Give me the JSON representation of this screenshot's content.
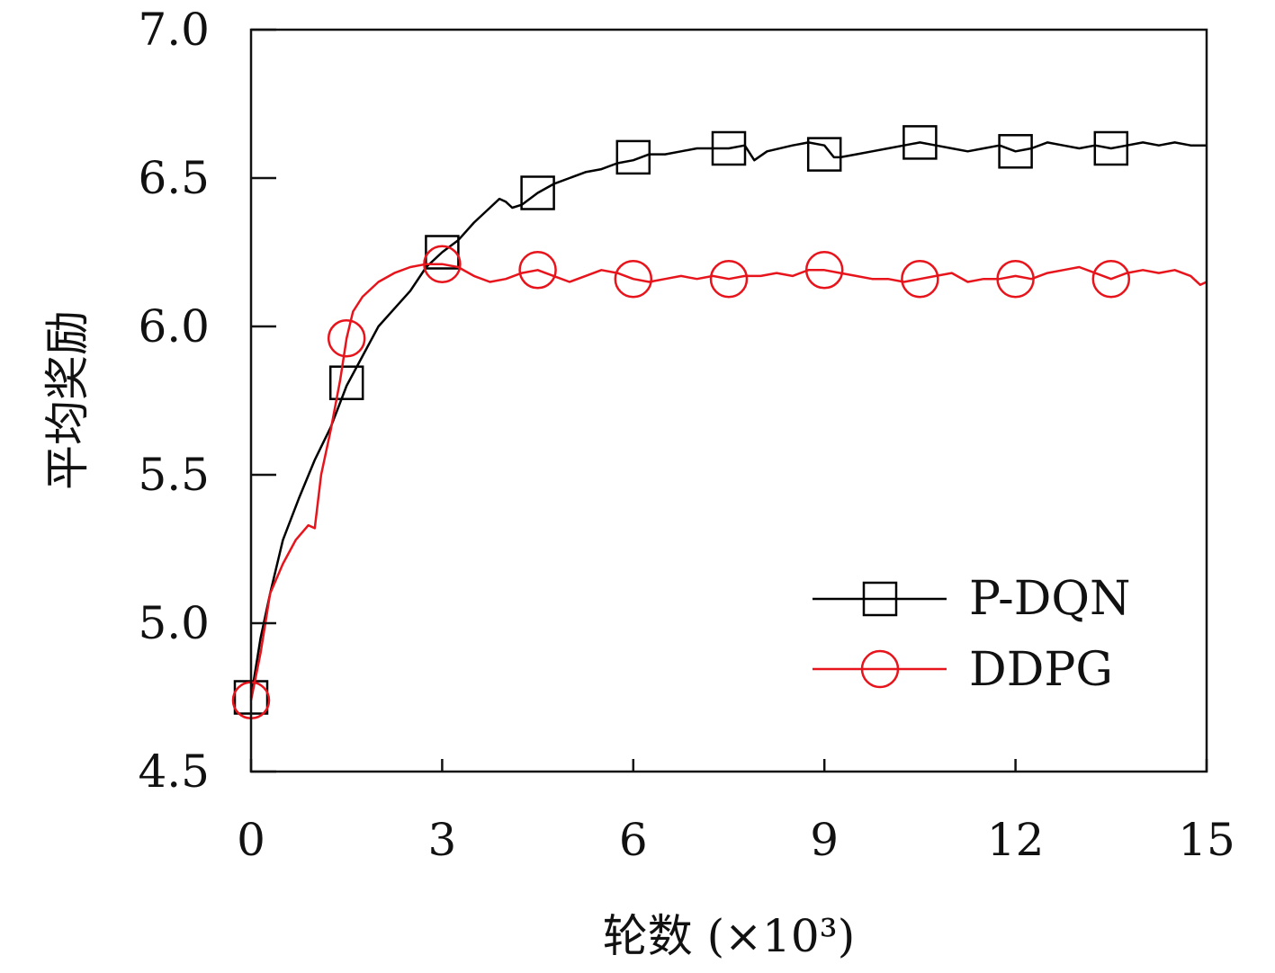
{
  "chart_data": {
    "type": "line",
    "xlabel": "轮数 (×10³)",
    "ylabel": "平均奖励",
    "xlim": [
      0,
      15
    ],
    "ylim": [
      4.5,
      7.0
    ],
    "x_ticks": [
      "0",
      "3",
      "6",
      "9",
      "12",
      "15"
    ],
    "y_ticks": [
      "4.5",
      "5.0",
      "5.5",
      "6.0",
      "6.5",
      "7.0"
    ],
    "grid": false,
    "legend_position": "lower-right",
    "series": [
      {
        "name": "P-DQN",
        "color": "#000000",
        "marker": "square",
        "markers": {
          "x": [
            0,
            1.5,
            3,
            4.5,
            6,
            7.5,
            9,
            10.5,
            12,
            13.5
          ],
          "y": [
            4.75,
            5.81,
            6.25,
            6.45,
            6.57,
            6.6,
            6.58,
            6.62,
            6.59,
            6.6
          ]
        },
        "x": [
          0,
          0.15,
          0.3,
          0.5,
          0.75,
          1.0,
          1.25,
          1.5,
          1.75,
          2.0,
          2.25,
          2.5,
          2.75,
          3.0,
          3.25,
          3.5,
          3.75,
          3.9,
          4.0,
          4.1,
          4.25,
          4.5,
          4.75,
          5.0,
          5.25,
          5.5,
          5.75,
          6.0,
          6.25,
          6.5,
          6.75,
          7.0,
          7.25,
          7.5,
          7.75,
          7.9,
          8.1,
          8.5,
          8.75,
          9.0,
          9.15,
          9.25,
          9.5,
          9.75,
          10.0,
          10.25,
          10.5,
          10.75,
          11.0,
          11.25,
          11.5,
          11.75,
          12.0,
          12.25,
          12.5,
          12.75,
          13.0,
          13.25,
          13.5,
          13.75,
          14.0,
          14.25,
          14.5,
          14.75,
          15.0
        ],
        "y": [
          4.75,
          4.95,
          5.1,
          5.28,
          5.42,
          5.55,
          5.66,
          5.8,
          5.9,
          6.0,
          6.06,
          6.12,
          6.2,
          6.25,
          6.29,
          6.35,
          6.4,
          6.43,
          6.42,
          6.4,
          6.41,
          6.45,
          6.48,
          6.5,
          6.52,
          6.53,
          6.55,
          6.56,
          6.58,
          6.58,
          6.59,
          6.6,
          6.6,
          6.6,
          6.61,
          6.56,
          6.59,
          6.61,
          6.62,
          6.61,
          6.57,
          6.57,
          6.58,
          6.59,
          6.6,
          6.61,
          6.62,
          6.61,
          6.6,
          6.59,
          6.6,
          6.61,
          6.59,
          6.6,
          6.62,
          6.61,
          6.6,
          6.61,
          6.6,
          6.61,
          6.62,
          6.61,
          6.62,
          6.61,
          6.61
        ]
      },
      {
        "name": "DDPG",
        "color": "#e8141c",
        "marker": "circle",
        "markers": {
          "x": [
            0,
            1.5,
            3,
            4.5,
            6,
            7.5,
            9,
            10.5,
            12,
            13.5
          ],
          "y": [
            4.74,
            5.96,
            6.21,
            6.19,
            6.16,
            6.16,
            6.19,
            6.16,
            6.16,
            6.16
          ]
        },
        "x": [
          0,
          0.15,
          0.3,
          0.5,
          0.7,
          0.9,
          1.0,
          1.1,
          1.25,
          1.4,
          1.5,
          1.6,
          1.75,
          2.0,
          2.25,
          2.5,
          2.75,
          3.0,
          3.25,
          3.5,
          3.75,
          4.0,
          4.25,
          4.5,
          4.75,
          5.0,
          5.25,
          5.5,
          5.75,
          6.0,
          6.25,
          6.5,
          6.75,
          7.0,
          7.25,
          7.5,
          7.75,
          8.0,
          8.25,
          8.5,
          8.75,
          9.0,
          9.25,
          9.5,
          9.75,
          10.0,
          10.25,
          10.5,
          10.75,
          11.0,
          11.25,
          11.5,
          11.75,
          12.0,
          12.25,
          12.5,
          12.75,
          13.0,
          13.25,
          13.5,
          13.75,
          14.0,
          14.25,
          14.5,
          14.75,
          14.9,
          15.0
        ],
        "y": [
          4.74,
          4.9,
          5.1,
          5.2,
          5.28,
          5.33,
          5.32,
          5.5,
          5.65,
          5.82,
          5.96,
          6.05,
          6.1,
          6.15,
          6.18,
          6.2,
          6.21,
          6.21,
          6.2,
          6.17,
          6.15,
          6.16,
          6.18,
          6.19,
          6.17,
          6.15,
          6.17,
          6.19,
          6.18,
          6.16,
          6.15,
          6.16,
          6.17,
          6.16,
          6.17,
          6.16,
          6.17,
          6.17,
          6.18,
          6.17,
          6.19,
          6.19,
          6.18,
          6.17,
          6.16,
          6.16,
          6.15,
          6.16,
          6.17,
          6.18,
          6.15,
          6.16,
          6.16,
          6.17,
          6.16,
          6.18,
          6.19,
          6.2,
          6.18,
          6.16,
          6.18,
          6.19,
          6.18,
          6.19,
          6.17,
          6.14,
          6.15
        ]
      }
    ]
  }
}
